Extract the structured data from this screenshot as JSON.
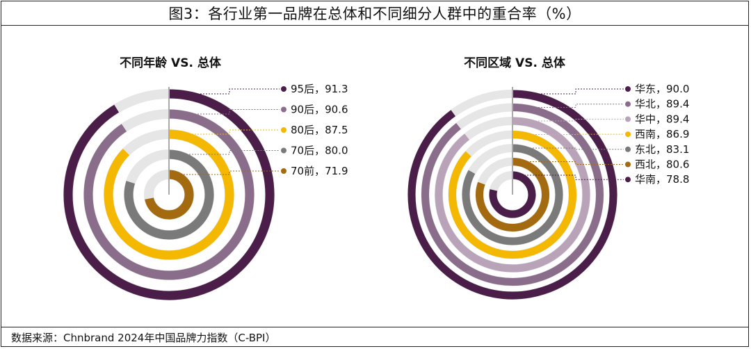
{
  "figure": {
    "title": "图3：各行业第一品牌在总体和不同细分人群中的重合率（%）",
    "source": "数据来源：Chnbrand 2024年中国品牌力指数（C-BPI）"
  },
  "chart_data": [
    {
      "type": "radial-bar",
      "title": "不同年龄 VS. 总体",
      "scale_max": 100,
      "label_separator": "，",
      "series": [
        {
          "name": "95后",
          "value": 91.3,
          "color": "#4a1e48"
        },
        {
          "name": "90后",
          "value": 90.6,
          "color": "#8a6d8b"
        },
        {
          "name": "80后",
          "value": 87.5,
          "color": "#f5b800"
        },
        {
          "name": "70后",
          "value": 80.0,
          "color": "#7a7a7a"
        },
        {
          "name": "70前",
          "value": 71.9,
          "color": "#a36a10"
        }
      ]
    },
    {
      "type": "radial-bar",
      "title": "不同区域 VS. 总体",
      "scale_max": 100,
      "label_separator": "，",
      "series": [
        {
          "name": "华东",
          "value": 90.0,
          "color": "#4a1e48"
        },
        {
          "name": "华北",
          "value": 89.4,
          "color": "#8a6d8b"
        },
        {
          "name": "华中",
          "value": 89.4,
          "color": "#b8a3b8"
        },
        {
          "name": "西南",
          "value": 86.9,
          "color": "#f5b800"
        },
        {
          "name": "东北",
          "value": 83.1,
          "color": "#7a7a7a"
        },
        {
          "name": "西北",
          "value": 80.6,
          "color": "#a36a10"
        },
        {
          "name": "华南",
          "value": 78.8,
          "color": "#4a1e48"
        }
      ]
    }
  ]
}
